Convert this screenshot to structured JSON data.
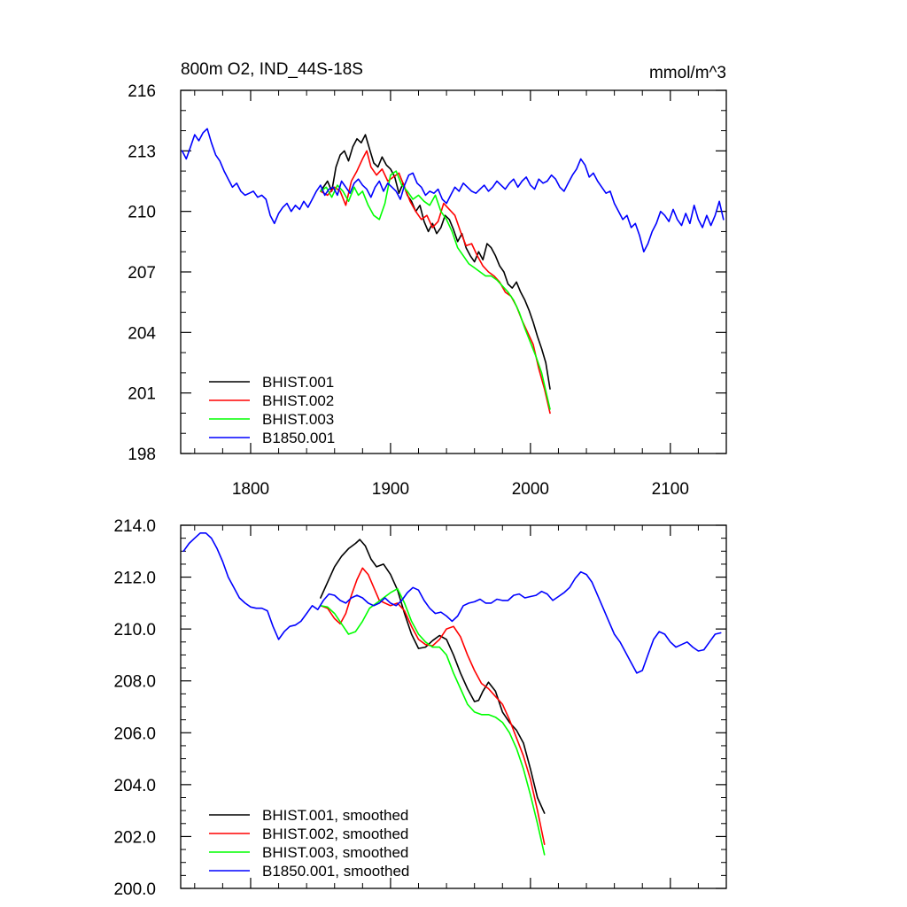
{
  "chart_data": [
    {
      "type": "line",
      "title": "800m O2, IND_44S-18S",
      "units": "mmol/m^3",
      "xlim": [
        1750,
        2140
      ],
      "ylim": [
        198,
        216
      ],
      "xticks": [
        1800,
        1900,
        2000,
        2100
      ],
      "xtick_labels": [
        "1800",
        "1900",
        "2000",
        "2100"
      ],
      "yticks": [
        198,
        201,
        204,
        207,
        210,
        213,
        216
      ],
      "ytick_labels": [
        "198",
        "201",
        "204",
        "207",
        "210",
        "213",
        "216"
      ],
      "legend_position": "bottom-left",
      "series": [
        {
          "name": "BHIST.001",
          "color": "#000000",
          "x": [
            1850,
            1855,
            1858,
            1861,
            1864,
            1867,
            1870,
            1873,
            1876,
            1879,
            1882,
            1885,
            1888,
            1891,
            1894,
            1897,
            1900,
            1903,
            1906,
            1909,
            1912,
            1915,
            1918,
            1921,
            1924,
            1927,
            1930,
            1933,
            1936,
            1939,
            1942,
            1945,
            1948,
            1951,
            1954,
            1957,
            1960,
            1963,
            1966,
            1969,
            1972,
            1975,
            1978,
            1981,
            1984,
            1987,
            1990,
            1993,
            1996,
            1999,
            2002,
            2005,
            2008,
            2011,
            2014
          ],
          "y": [
            211.0,
            211.5,
            211.0,
            212.2,
            212.8,
            213.0,
            212.5,
            213.2,
            213.6,
            213.4,
            213.8,
            213.1,
            212.4,
            212.2,
            212.7,
            212.3,
            212.1,
            211.7,
            210.9,
            211.4,
            210.8,
            210.5,
            210.0,
            210.3,
            209.5,
            209.0,
            209.4,
            208.9,
            209.2,
            209.8,
            209.6,
            209.1,
            208.5,
            208.9,
            208.2,
            207.8,
            207.5,
            208.0,
            207.6,
            208.4,
            208.2,
            207.8,
            207.3,
            207.0,
            206.4,
            206.2,
            206.5,
            206.0,
            205.6,
            205.1,
            204.5,
            203.8,
            203.2,
            202.5,
            201.2
          ]
        },
        {
          "name": "BHIST.002",
          "color": "#ff0000",
          "x": [
            1850,
            1855,
            1860,
            1864,
            1868,
            1872,
            1876,
            1880,
            1883,
            1886,
            1890,
            1894,
            1898,
            1902,
            1906,
            1910,
            1914,
            1918,
            1922,
            1926,
            1930,
            1934,
            1938,
            1942,
            1946,
            1950,
            1954,
            1958,
            1962,
            1966,
            1970,
            1974,
            1978,
            1982,
            1986,
            1990,
            1994,
            1998,
            2002,
            2006,
            2010,
            2014
          ],
          "y": [
            211.0,
            210.8,
            211.2,
            211.0,
            210.3,
            211.5,
            212.0,
            212.6,
            213.0,
            212.2,
            211.8,
            212.1,
            211.5,
            211.7,
            211.9,
            211.2,
            210.5,
            210.0,
            209.6,
            209.8,
            209.2,
            209.5,
            210.4,
            210.1,
            209.8,
            209.0,
            208.3,
            208.4,
            207.8,
            207.3,
            207.0,
            206.8,
            206.5,
            206.0,
            205.8,
            205.3,
            204.6,
            204.0,
            203.4,
            202.2,
            201.2,
            200.0
          ]
        },
        {
          "name": "BHIST.003",
          "color": "#00ff00",
          "x": [
            1850,
            1854,
            1858,
            1862,
            1866,
            1870,
            1874,
            1877,
            1880,
            1884,
            1888,
            1892,
            1896,
            1900,
            1904,
            1908,
            1912,
            1916,
            1920,
            1924,
            1928,
            1932,
            1936,
            1940,
            1944,
            1948,
            1952,
            1956,
            1960,
            1964,
            1968,
            1972,
            1976,
            1980,
            1984,
            1988,
            1992,
            1996,
            2000,
            2004,
            2008,
            2012,
            2014
          ],
          "y": [
            211.0,
            211.2,
            210.7,
            211.3,
            211.0,
            210.5,
            211.2,
            210.8,
            211.0,
            210.3,
            209.8,
            209.6,
            210.4,
            211.8,
            212.0,
            211.3,
            211.0,
            210.6,
            210.8,
            210.5,
            210.3,
            210.8,
            210.0,
            209.6,
            209.0,
            208.2,
            207.8,
            207.4,
            207.2,
            207.0,
            206.8,
            206.8,
            206.6,
            206.3,
            206.0,
            205.6,
            205.0,
            204.2,
            203.5,
            202.8,
            202.0,
            200.8,
            200.2
          ]
        },
        {
          "name": "B1850.001",
          "color": "#0000ff",
          "x": [
            1751,
            1754,
            1757,
            1760,
            1763,
            1766,
            1769,
            1772,
            1775,
            1778,
            1781,
            1784,
            1787,
            1790,
            1793,
            1796,
            1799,
            1802,
            1805,
            1808,
            1811,
            1814,
            1817,
            1820,
            1823,
            1826,
            1829,
            1832,
            1835,
            1838,
            1841,
            1844,
            1847,
            1850,
            1853,
            1856,
            1859,
            1862,
            1865,
            1868,
            1871,
            1874,
            1877,
            1880,
            1883,
            1886,
            1889,
            1892,
            1895,
            1898,
            1901,
            1904,
            1907,
            1910,
            1913,
            1916,
            1919,
            1922,
            1925,
            1928,
            1931,
            1934,
            1937,
            1940,
            1943,
            1946,
            1949,
            1952,
            1955,
            1958,
            1961,
            1964,
            1967,
            1970,
            1973,
            1976,
            1979,
            1982,
            1985,
            1988,
            1991,
            1994,
            1997,
            2000,
            2003,
            2006,
            2009,
            2012,
            2015,
            2018,
            2021,
            2024,
            2027,
            2030,
            2033,
            2036,
            2039,
            2042,
            2045,
            2048,
            2051,
            2054,
            2057,
            2060,
            2063,
            2066,
            2069,
            2072,
            2075,
            2078,
            2081,
            2084,
            2087,
            2090,
            2093,
            2096,
            2099,
            2102,
            2105,
            2108,
            2111,
            2114,
            2117,
            2120,
            2123,
            2126,
            2129,
            2132,
            2135,
            2138
          ],
          "y": [
            213.0,
            212.6,
            213.2,
            213.8,
            213.5,
            213.9,
            214.1,
            213.4,
            212.8,
            212.5,
            212.0,
            211.6,
            211.2,
            211.4,
            211.0,
            210.8,
            210.9,
            211.0,
            210.7,
            210.8,
            210.6,
            209.8,
            209.4,
            209.9,
            210.2,
            210.4,
            210.0,
            210.3,
            210.1,
            210.5,
            210.2,
            210.6,
            211.0,
            211.3,
            210.8,
            211.1,
            211.2,
            210.8,
            211.5,
            211.2,
            210.9,
            211.4,
            211.6,
            211.3,
            211.1,
            210.7,
            211.2,
            211.5,
            211.0,
            211.4,
            211.2,
            211.0,
            210.6,
            211.3,
            211.8,
            211.9,
            211.4,
            211.2,
            210.8,
            211.0,
            210.9,
            211.1,
            210.6,
            210.4,
            210.8,
            211.2,
            211.0,
            211.4,
            211.2,
            211.0,
            210.9,
            211.1,
            211.3,
            211.0,
            211.2,
            211.5,
            211.3,
            211.1,
            211.4,
            211.6,
            211.2,
            211.5,
            211.7,
            211.3,
            211.1,
            211.6,
            211.4,
            211.5,
            211.8,
            211.6,
            211.2,
            211.0,
            211.4,
            211.8,
            212.1,
            212.6,
            212.3,
            211.7,
            211.9,
            211.5,
            211.2,
            210.9,
            211.0,
            210.4,
            210.0,
            209.6,
            209.8,
            209.2,
            209.4,
            208.8,
            208.0,
            208.4,
            209.0,
            209.4,
            210.0,
            209.8,
            209.5,
            210.1,
            209.6,
            209.3,
            209.9,
            209.4,
            210.3,
            209.6,
            209.2,
            209.8,
            209.3,
            209.8,
            210.5,
            209.6
          ]
        }
      ]
    },
    {
      "type": "line",
      "xlim": [
        1750,
        2140
      ],
      "ylim": [
        200,
        214
      ],
      "xticks": [
        1800,
        1900,
        2000,
        2100
      ],
      "yticks": [
        200,
        202,
        204,
        206,
        208,
        210,
        212,
        214
      ],
      "ytick_labels": [
        "200.0",
        "202.0",
        "204.0",
        "206.0",
        "208.0",
        "210.0",
        "212.0",
        "214.0"
      ],
      "legend_position": "bottom-left",
      "series": [
        {
          "name": "BHIST.001, smoothed",
          "color": "#000000",
          "x": [
            1850,
            1855,
            1860,
            1865,
            1870,
            1875,
            1878,
            1882,
            1886,
            1890,
            1895,
            1900,
            1905,
            1910,
            1915,
            1920,
            1925,
            1930,
            1935,
            1940,
            1945,
            1950,
            1955,
            1960,
            1963,
            1966,
            1970,
            1975,
            1980,
            1985,
            1990,
            1995,
            2000,
            2005,
            2010
          ],
          "y": [
            211.2,
            211.8,
            212.4,
            212.8,
            213.1,
            213.3,
            213.45,
            213.2,
            212.7,
            212.4,
            212.5,
            212.1,
            211.5,
            210.6,
            209.8,
            209.25,
            209.3,
            209.55,
            209.75,
            209.6,
            209.0,
            208.3,
            207.7,
            207.2,
            207.25,
            207.6,
            207.95,
            207.6,
            206.8,
            206.4,
            206.1,
            205.6,
            204.6,
            203.5,
            202.9
          ]
        },
        {
          "name": "BHIST.002, smoothed",
          "color": "#ff0000",
          "x": [
            1850,
            1855,
            1860,
            1864,
            1868,
            1872,
            1876,
            1880,
            1884,
            1888,
            1892,
            1896,
            1900,
            1905,
            1910,
            1915,
            1920,
            1925,
            1930,
            1935,
            1940,
            1945,
            1950,
            1955,
            1960,
            1965,
            1970,
            1975,
            1980,
            1985,
            1990,
            1995,
            2000,
            2005,
            2010
          ],
          "y": [
            210.9,
            210.8,
            210.4,
            210.2,
            210.6,
            211.3,
            211.9,
            212.35,
            212.1,
            211.6,
            211.1,
            211.0,
            210.9,
            211.0,
            210.7,
            210.1,
            209.6,
            209.4,
            209.35,
            209.6,
            210.0,
            210.1,
            209.7,
            209.0,
            208.4,
            207.9,
            207.7,
            207.4,
            207.1,
            206.5,
            205.8,
            205.1,
            204.2,
            203.0,
            201.7
          ]
        },
        {
          "name": "BHIST.003, smoothed",
          "color": "#00ff00",
          "x": [
            1850,
            1855,
            1860,
            1865,
            1870,
            1875,
            1880,
            1885,
            1890,
            1895,
            1900,
            1905,
            1910,
            1915,
            1920,
            1925,
            1930,
            1935,
            1940,
            1945,
            1950,
            1955,
            1960,
            1965,
            1970,
            1975,
            1980,
            1985,
            1990,
            1995,
            2000,
            2005,
            2010
          ],
          "y": [
            210.9,
            210.85,
            210.6,
            210.2,
            209.8,
            209.9,
            210.3,
            210.8,
            211.0,
            211.2,
            211.4,
            211.55,
            211.0,
            210.3,
            209.8,
            209.5,
            209.3,
            209.3,
            209.0,
            208.3,
            207.7,
            207.1,
            206.8,
            206.7,
            206.7,
            206.6,
            206.4,
            206.0,
            205.4,
            204.6,
            203.6,
            202.5,
            201.3
          ]
        },
        {
          "name": "B1850.001, smoothed",
          "color": "#0000ff",
          "x": [
            1752,
            1756,
            1760,
            1764,
            1768,
            1772,
            1776,
            1780,
            1784,
            1788,
            1792,
            1796,
            1800,
            1804,
            1808,
            1812,
            1816,
            1820,
            1824,
            1828,
            1832,
            1836,
            1840,
            1844,
            1848,
            1852,
            1856,
            1860,
            1864,
            1868,
            1872,
            1876,
            1880,
            1884,
            1888,
            1892,
            1896,
            1900,
            1904,
            1908,
            1912,
            1916,
            1920,
            1924,
            1928,
            1932,
            1936,
            1940,
            1944,
            1948,
            1952,
            1956,
            1960,
            1964,
            1968,
            1972,
            1976,
            1980,
            1984,
            1988,
            1992,
            1996,
            2000,
            2004,
            2008,
            2012,
            2016,
            2020,
            2024,
            2028,
            2032,
            2036,
            2040,
            2044,
            2048,
            2052,
            2056,
            2060,
            2064,
            2068,
            2072,
            2076,
            2080,
            2084,
            2088,
            2092,
            2096,
            2100,
            2104,
            2108,
            2112,
            2116,
            2120,
            2124,
            2128,
            2132,
            2136
          ],
          "y": [
            213.0,
            213.3,
            213.5,
            213.7,
            213.7,
            213.5,
            213.1,
            212.6,
            212.0,
            211.6,
            211.2,
            211.0,
            210.85,
            210.8,
            210.8,
            210.7,
            210.1,
            209.6,
            209.9,
            210.1,
            210.15,
            210.3,
            210.6,
            210.9,
            210.75,
            211.1,
            211.35,
            211.3,
            211.1,
            211.0,
            211.2,
            211.3,
            211.2,
            211.0,
            210.9,
            211.0,
            211.2,
            211.0,
            210.9,
            211.1,
            211.4,
            211.6,
            211.5,
            211.1,
            210.8,
            210.6,
            210.65,
            210.5,
            210.3,
            210.5,
            210.9,
            211.0,
            211.05,
            211.15,
            211.0,
            211.0,
            211.15,
            211.1,
            211.1,
            211.3,
            211.35,
            211.2,
            211.25,
            211.3,
            211.45,
            211.35,
            211.1,
            211.25,
            211.4,
            211.6,
            211.95,
            212.2,
            212.1,
            211.8,
            211.3,
            210.8,
            210.3,
            209.8,
            209.5,
            209.1,
            208.7,
            208.3,
            208.4,
            209.0,
            209.6,
            209.9,
            209.8,
            209.5,
            209.3,
            209.4,
            209.5,
            209.3,
            209.15,
            209.2,
            209.5,
            209.8,
            209.85
          ]
        }
      ]
    }
  ]
}
